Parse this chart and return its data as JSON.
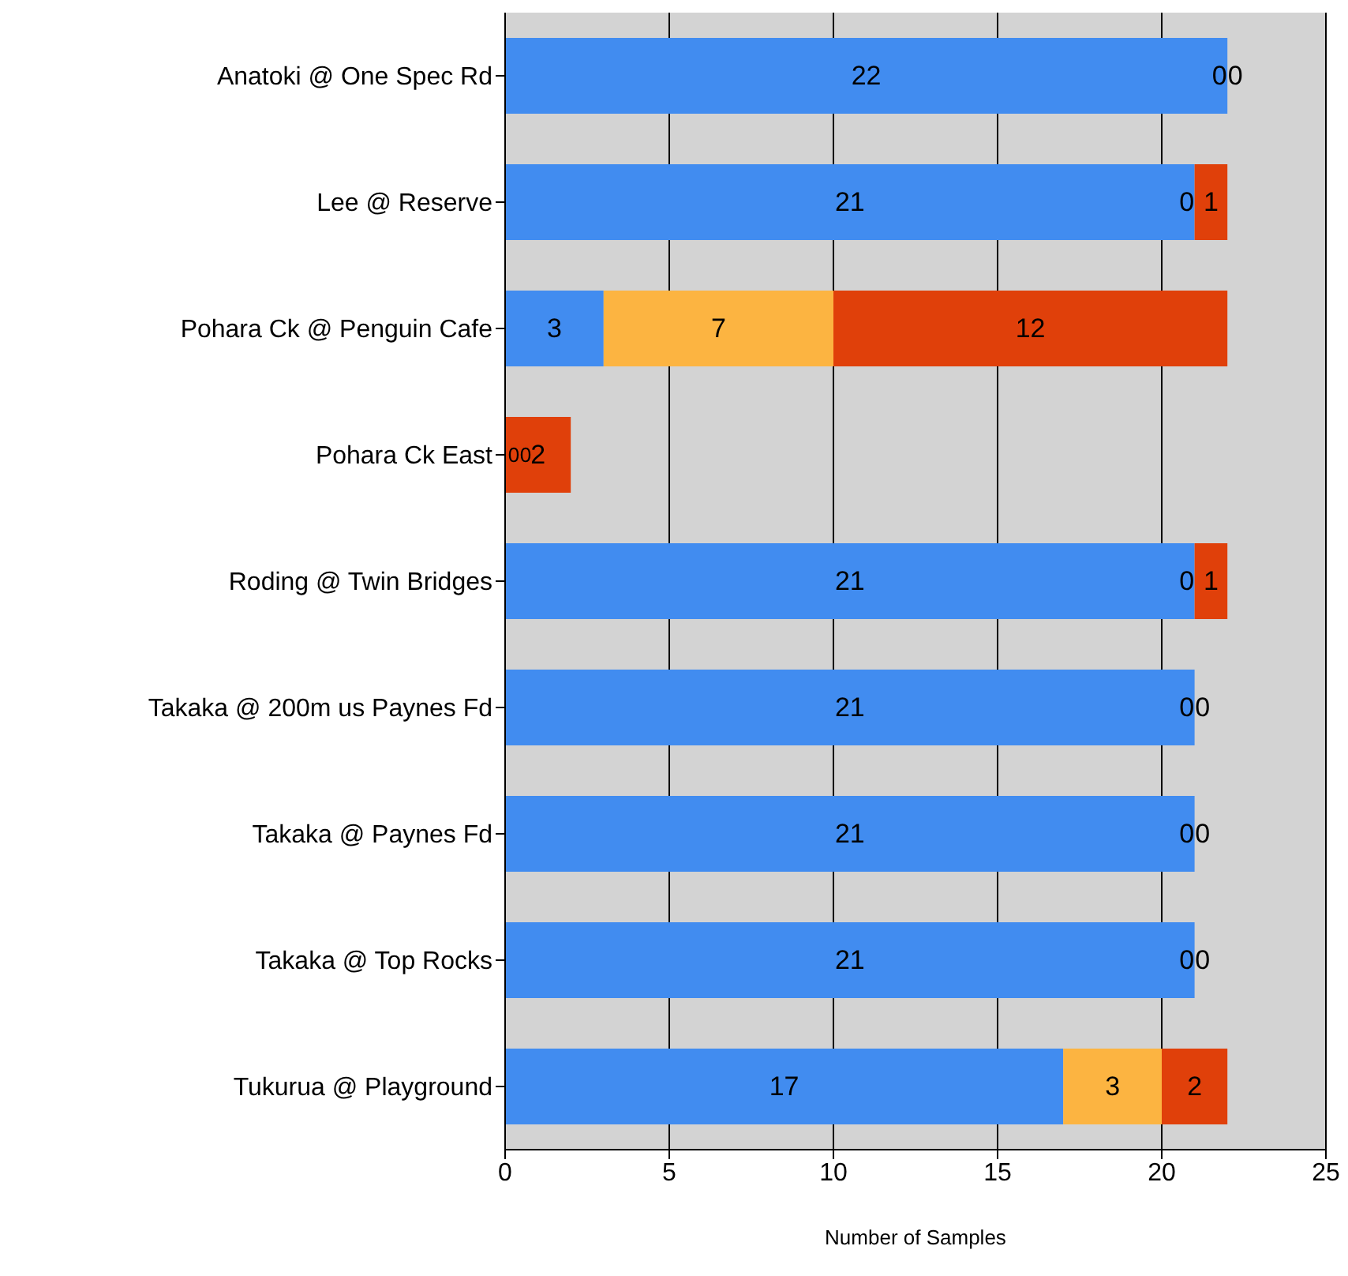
{
  "chart_data": {
    "type": "bar",
    "orientation": "horizontal",
    "stacked": true,
    "xlabel": "Number of Samples",
    "categories": [
      "Anatoki @ One Spec Rd",
      "Lee @ Reserve",
      "Pohara Ck @ Penguin Cafe",
      "Pohara Ck East",
      "Roding @ Twin Bridges",
      "Takaka @ 200m us Paynes Fd",
      "Takaka @ Paynes Fd",
      "Takaka @ Top Rocks",
      "Tukurua @ Playground"
    ],
    "series": [
      {
        "color": "#418cf0",
        "values": [
          22,
          21,
          3,
          0,
          21,
          21,
          21,
          21,
          17
        ]
      },
      {
        "color": "#fcb441",
        "values": [
          0,
          0,
          7,
          0,
          0,
          0,
          0,
          0,
          3
        ]
      },
      {
        "color": "#e0400a",
        "values": [
          0,
          1,
          12,
          2,
          1,
          0,
          0,
          0,
          2
        ]
      }
    ],
    "xlim": [
      0,
      25
    ],
    "xticks": [
      0,
      5,
      10,
      15,
      20,
      25
    ],
    "grid": "x",
    "data_labels": true,
    "legend": false
  }
}
